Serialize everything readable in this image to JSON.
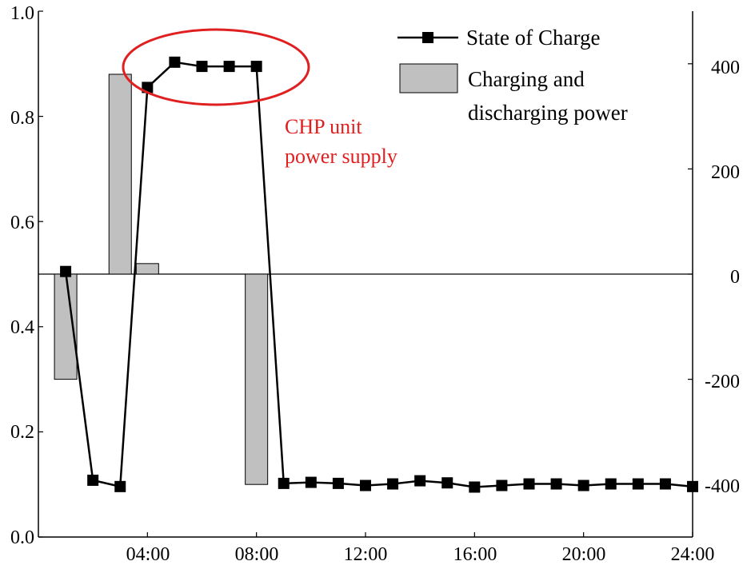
{
  "chart_data": {
    "type": "bar+line",
    "x_ticks": [
      "04:00",
      "08:00",
      "12:00",
      "16:00",
      "20:00",
      "24:00"
    ],
    "left_axis": {
      "ylim": [
        0.0,
        1.0
      ],
      "ticks": [
        "0.0",
        "0.2",
        "0.4",
        "0.6",
        "0.8",
        "1.0"
      ]
    },
    "right_axis": {
      "ylim": [
        -500,
        500
      ],
      "ticks": [
        "-400",
        "-200",
        "0",
        "200",
        "400"
      ]
    },
    "series": [
      {
        "name": "Charging and\ndischarging power",
        "kind": "bar",
        "axis": "right",
        "color": "#c0c0c0",
        "x": [
          1,
          3,
          4,
          8
        ],
        "values": [
          -200,
          380,
          20,
          -400
        ]
      },
      {
        "name": "State of Charge",
        "kind": "line",
        "axis": "left",
        "color": "#000000",
        "marker": "square",
        "x": [
          1,
          2,
          3,
          4,
          5,
          6,
          7,
          8,
          9,
          10,
          11,
          12,
          13,
          14,
          15,
          16,
          17,
          18,
          19,
          20,
          21,
          22,
          23,
          24
        ],
        "values": [
          0.505,
          0.108,
          0.096,
          0.855,
          0.903,
          0.895,
          0.895,
          0.895,
          0.102,
          0.104,
          0.102,
          0.098,
          0.101,
          0.107,
          0.103,
          0.095,
          0.098,
          0.101,
          0.101,
          0.098,
          0.101,
          0.101,
          0.101,
          0.096
        ]
      }
    ],
    "legend": {
      "placement": "top-right",
      "soc_label": "State of Charge",
      "power_label_line1": "Charging and",
      "power_label_line2": "discharging power"
    },
    "annotation": {
      "line1": "CHP unit",
      "line2": "power supply",
      "color": "#e02020"
    }
  }
}
